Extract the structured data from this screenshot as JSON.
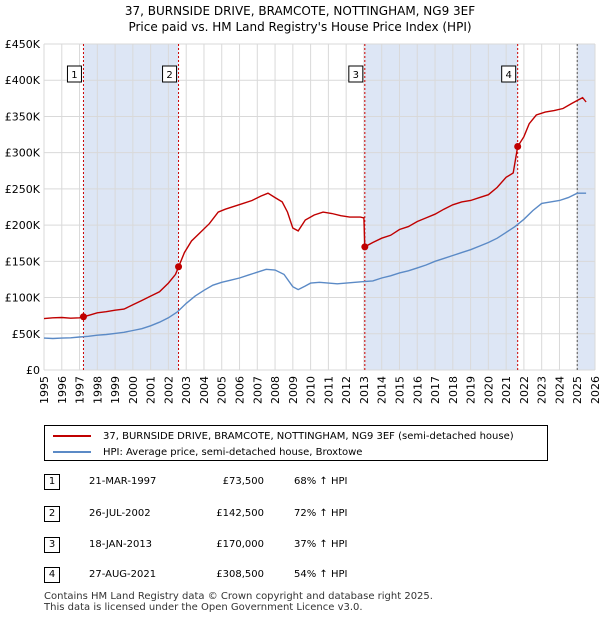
{
  "title_line1": "37, BURNSIDE DRIVE, BRAMCOTE, NOTTINGHAM, NG9 3EF",
  "title_line2": "Price paid vs. HM Land Registry's House Price Index (HPI)",
  "colors": {
    "property": "#c00000",
    "hpi": "#5b8ac6",
    "shade": "#dde6f5",
    "marker_line": "#cc0000"
  },
  "chart_data": {
    "type": "line",
    "ylim": [
      0,
      450000
    ],
    "xlim": [
      1995,
      2026
    ],
    "y_ticks": [
      {
        "value": 0,
        "label": "£0"
      },
      {
        "value": 50000,
        "label": "£50K"
      },
      {
        "value": 100000,
        "label": "£100K"
      },
      {
        "value": 150000,
        "label": "£150K"
      },
      {
        "value": 200000,
        "label": "£200K"
      },
      {
        "value": 250000,
        "label": "£250K"
      },
      {
        "value": 300000,
        "label": "£300K"
      },
      {
        "value": 350000,
        "label": "£350K"
      },
      {
        "value": 400000,
        "label": "£400K"
      },
      {
        "value": 450000,
        "label": "£450K"
      }
    ],
    "x_ticks": [
      1995,
      1996,
      1997,
      1998,
      1999,
      2000,
      2001,
      2002,
      2003,
      2004,
      2005,
      2006,
      2007,
      2008,
      2009,
      2010,
      2011,
      2012,
      2013,
      2014,
      2015,
      2016,
      2017,
      2018,
      2019,
      2020,
      2021,
      2022,
      2023,
      2024,
      2025,
      2026
    ],
    "shaded_ranges": [
      [
        1997.22,
        2002.57
      ],
      [
        2013.05,
        2021.65
      ],
      [
        2025.0,
        2026.0
      ]
    ],
    "series": [
      {
        "name": "37, BURNSIDE DRIVE, BRAMCOTE, NOTTINGHAM, NG9 3EF (semi-detached house)",
        "points": [
          [
            1995,
            71000
          ],
          [
            1995.5,
            72000
          ],
          [
            1996,
            72500
          ],
          [
            1996.5,
            71500
          ],
          [
            1997.0,
            72000
          ],
          [
            1997.22,
            73500
          ],
          [
            1997.6,
            76000
          ],
          [
            1998,
            79000
          ],
          [
            1998.5,
            80500
          ],
          [
            1999,
            82500
          ],
          [
            1999.5,
            84000
          ],
          [
            2000,
            90000
          ],
          [
            2000.5,
            96000
          ],
          [
            2001,
            102000
          ],
          [
            2001.5,
            108000
          ],
          [
            2002,
            120000
          ],
          [
            2002.4,
            132000
          ],
          [
            2002.57,
            142500
          ],
          [
            2002.9,
            162000
          ],
          [
            2003.3,
            178000
          ],
          [
            2003.8,
            190000
          ],
          [
            2004.3,
            202000
          ],
          [
            2004.8,
            218000
          ],
          [
            2005.2,
            222000
          ],
          [
            2005.7,
            226000
          ],
          [
            2006.2,
            230000
          ],
          [
            2006.7,
            234000
          ],
          [
            2007.2,
            240000
          ],
          [
            2007.6,
            244000
          ],
          [
            2008.0,
            238000
          ],
          [
            2008.4,
            232000
          ],
          [
            2008.7,
            218000
          ],
          [
            2009.0,
            196000
          ],
          [
            2009.3,
            192000
          ],
          [
            2009.7,
            207000
          ],
          [
            2010.2,
            214000
          ],
          [
            2010.7,
            218000
          ],
          [
            2011.2,
            216000
          ],
          [
            2011.7,
            213000
          ],
          [
            2012.2,
            211000
          ],
          [
            2012.8,
            211000
          ],
          [
            2013.0,
            210000
          ],
          [
            2013.05,
            170000
          ],
          [
            2013.5,
            176000
          ],
          [
            2014,
            182000
          ],
          [
            2014.5,
            186000
          ],
          [
            2015,
            194000
          ],
          [
            2015.5,
            198000
          ],
          [
            2016,
            205000
          ],
          [
            2016.5,
            210000
          ],
          [
            2017,
            215000
          ],
          [
            2017.5,
            222000
          ],
          [
            2018,
            228000
          ],
          [
            2018.5,
            232000
          ],
          [
            2019,
            234000
          ],
          [
            2019.5,
            238000
          ],
          [
            2020,
            242000
          ],
          [
            2020.5,
            252000
          ],
          [
            2021.0,
            266000
          ],
          [
            2021.4,
            272000
          ],
          [
            2021.65,
            308500
          ],
          [
            2022.0,
            322000
          ],
          [
            2022.3,
            340000
          ],
          [
            2022.7,
            352000
          ],
          [
            2023.2,
            356000
          ],
          [
            2023.7,
            358000
          ],
          [
            2024.2,
            361000
          ],
          [
            2024.7,
            368000
          ],
          [
            2025.0,
            372000
          ],
          [
            2025.3,
            376000
          ],
          [
            2025.5,
            370000
          ]
        ]
      },
      {
        "name": "HPI: Average price, semi-detached house, Broxtowe",
        "points": [
          [
            1995,
            44000
          ],
          [
            1995.5,
            43500
          ],
          [
            1996,
            44000
          ],
          [
            1996.5,
            44500
          ],
          [
            1997,
            45500
          ],
          [
            1997.5,
            46500
          ],
          [
            1998,
            48000
          ],
          [
            1998.5,
            49000
          ],
          [
            1999,
            50500
          ],
          [
            1999.5,
            52000
          ],
          [
            2000,
            54500
          ],
          [
            2000.5,
            57000
          ],
          [
            2001,
            61000
          ],
          [
            2001.5,
            66000
          ],
          [
            2002,
            72000
          ],
          [
            2002.5,
            80000
          ],
          [
            2003,
            92000
          ],
          [
            2003.5,
            102000
          ],
          [
            2004,
            110000
          ],
          [
            2004.5,
            117000
          ],
          [
            2005,
            121000
          ],
          [
            2005.5,
            124000
          ],
          [
            2006,
            127000
          ],
          [
            2006.5,
            131000
          ],
          [
            2007,
            135000
          ],
          [
            2007.5,
            139000
          ],
          [
            2008,
            138000
          ],
          [
            2008.5,
            132000
          ],
          [
            2009,
            115000
          ],
          [
            2009.3,
            111000
          ],
          [
            2009.7,
            116000
          ],
          [
            2010,
            120000
          ],
          [
            2010.5,
            121000
          ],
          [
            2011,
            120000
          ],
          [
            2011.5,
            119000
          ],
          [
            2012,
            120000
          ],
          [
            2012.5,
            121000
          ],
          [
            2013,
            122000
          ],
          [
            2013.5,
            123000
          ],
          [
            2014,
            127000
          ],
          [
            2014.5,
            130000
          ],
          [
            2015,
            134000
          ],
          [
            2015.5,
            137000
          ],
          [
            2016,
            141000
          ],
          [
            2016.5,
            145000
          ],
          [
            2017,
            150000
          ],
          [
            2017.5,
            154000
          ],
          [
            2018,
            158000
          ],
          [
            2018.5,
            162000
          ],
          [
            2019,
            166000
          ],
          [
            2019.5,
            171000
          ],
          [
            2020,
            176000
          ],
          [
            2020.5,
            182000
          ],
          [
            2021,
            190000
          ],
          [
            2021.5,
            198000
          ],
          [
            2022,
            208000
          ],
          [
            2022.5,
            220000
          ],
          [
            2023,
            230000
          ],
          [
            2023.5,
            232000
          ],
          [
            2024,
            234000
          ],
          [
            2024.5,
            238000
          ],
          [
            2025,
            244000
          ],
          [
            2025.5,
            244000
          ]
        ]
      }
    ],
    "sales": [
      {
        "num": "1",
        "x": 1997.22,
        "value": 73500
      },
      {
        "num": "2",
        "x": 2002.57,
        "value": 142500
      },
      {
        "num": "3",
        "x": 2013.05,
        "value": 170000
      },
      {
        "num": "4",
        "x": 2021.65,
        "value": 308500
      }
    ]
  },
  "legend": {
    "property": "37, BURNSIDE DRIVE, BRAMCOTE, NOTTINGHAM, NG9 3EF (semi-detached house)",
    "hpi": "HPI: Average price, semi-detached house, Broxtowe"
  },
  "table": [
    {
      "num": "1",
      "date": "21-MAR-1997",
      "price": "£73,500",
      "hpi": "68% ↑ HPI"
    },
    {
      "num": "2",
      "date": "26-JUL-2002",
      "price": "£142,500",
      "hpi": "72% ↑ HPI"
    },
    {
      "num": "3",
      "date": "18-JAN-2013",
      "price": "£170,000",
      "hpi": "37% ↑ HPI"
    },
    {
      "num": "4",
      "date": "27-AUG-2021",
      "price": "£308,500",
      "hpi": "54% ↑ HPI"
    }
  ],
  "footer": {
    "line1": "Contains HM Land Registry data © Crown copyright and database right 2025.",
    "line2": "This data is licensed under the Open Government Licence v3.0."
  }
}
